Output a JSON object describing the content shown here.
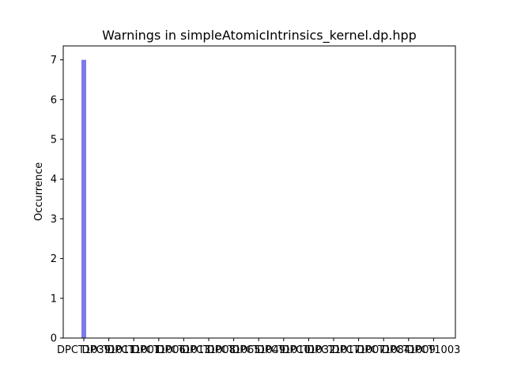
{
  "chart_data": {
    "type": "bar",
    "title": "Warnings in simpleAtomicIntrinsics_kernel.dp.hpp",
    "xlabel": "",
    "ylabel": "Occurrence",
    "ylim": [
      0,
      7.35
    ],
    "yticks": [
      0,
      1,
      2,
      3,
      4,
      5,
      6,
      7
    ],
    "categories": [
      "DPCT1039",
      "DPCT1011",
      "DPCT1001",
      "DPCT1006",
      "DPCT1013",
      "DPCT1008",
      "DPCT1065",
      "DPCT1049",
      "DPCT1010",
      "DPCT1032",
      "DPCT1017",
      "DPCT1007",
      "DPCT1084",
      "DPCT1009",
      "DPCT1003"
    ],
    "values": [
      7,
      0,
      0,
      0,
      0,
      0,
      0,
      0,
      0,
      0,
      0,
      0,
      0,
      0,
      0
    ],
    "bar_color": "#7b7bea",
    "grid": false
  }
}
